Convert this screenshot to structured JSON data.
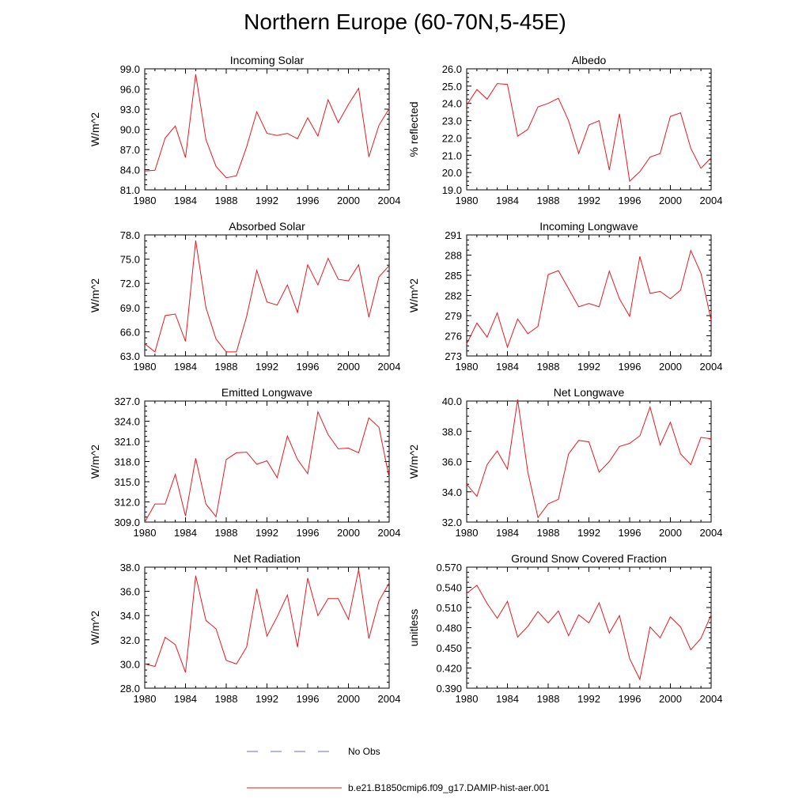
{
  "figure": {
    "title": "Northern Europe (60-70N,5-45E)",
    "legend": {
      "obs_label": "No Obs",
      "obs_color": "#6a6ad8",
      "model_label": "b.e21.B1850cmip6.f09_g17.DAMIP-hist-aer.001",
      "model_color": "#e8191e"
    }
  },
  "chart_data": [
    {
      "type": "line",
      "title": "Incoming Solar",
      "ylabel": "W/m^2",
      "x": [
        1980,
        1981,
        1982,
        1983,
        1984,
        1985,
        1986,
        1987,
        1988,
        1989,
        1990,
        1991,
        1992,
        1993,
        1994,
        1995,
        1996,
        1997,
        1998,
        1999,
        2000,
        2001,
        2002,
        2003,
        2004
      ],
      "xlim": [
        1980,
        2004
      ],
      "xticks": [
        "1980",
        "1984",
        "1988",
        "1992",
        "1996",
        "2000",
        "2004"
      ],
      "ylim": [
        81,
        99
      ],
      "yticks": [
        "81.0",
        "84.0",
        "87.0",
        "90.0",
        "93.0",
        "96.0",
        "99.0"
      ],
      "series": [
        {
          "values": [
            83.8,
            83.9,
            88.7,
            90.5,
            85.8,
            98.2,
            88.5,
            84.5,
            82.8,
            83.1,
            87.4,
            92.6,
            89.4,
            89.1,
            89.4,
            88.6,
            91.7,
            89.0,
            94.4,
            91.0,
            93.7,
            96.1,
            85.9,
            90.6,
            93.1
          ]
        }
      ]
    },
    {
      "type": "line",
      "title": "Albedo",
      "ylabel": "% reflected",
      "x": [
        1980,
        1981,
        1982,
        1983,
        1984,
        1985,
        1986,
        1987,
        1988,
        1989,
        1990,
        1991,
        1992,
        1993,
        1994,
        1995,
        1996,
        1997,
        1998,
        1999,
        2000,
        2001,
        2002,
        2003,
        2004
      ],
      "xlim": [
        1980,
        2004
      ],
      "xticks": [
        "1980",
        "1984",
        "1988",
        "1992",
        "1996",
        "2000",
        "2004"
      ],
      "ylim": [
        19,
        26
      ],
      "yticks": [
        "19.0",
        "20.0",
        "21.0",
        "22.0",
        "23.0",
        "24.0",
        "25.0",
        "26.0"
      ],
      "series": [
        {
          "values": [
            23.9,
            24.8,
            24.25,
            25.15,
            25.1,
            22.1,
            22.5,
            23.8,
            24.0,
            24.3,
            23.0,
            21.1,
            22.75,
            23.0,
            20.15,
            23.4,
            19.5,
            20.05,
            20.9,
            21.1,
            23.25,
            23.45,
            21.4,
            20.25,
            20.85
          ]
        }
      ]
    },
    {
      "type": "line",
      "title": "Absorbed Solar",
      "ylabel": "W/m^2",
      "x": [
        1980,
        1981,
        1982,
        1983,
        1984,
        1985,
        1986,
        1987,
        1988,
        1989,
        1990,
        1991,
        1992,
        1993,
        1994,
        1995,
        1996,
        1997,
        1998,
        1999,
        2000,
        2001,
        2002,
        2003,
        2004
      ],
      "xlim": [
        1980,
        2004
      ],
      "xticks": [
        "1980",
        "1984",
        "1988",
        "1992",
        "1996",
        "2000",
        "2004"
      ],
      "ylim": [
        63,
        78
      ],
      "yticks": [
        "63.0",
        "66.0",
        "69.0",
        "72.0",
        "75.0",
        "78.0"
      ],
      "series": [
        {
          "values": [
            64.5,
            63.5,
            68.0,
            68.2,
            64.8,
            77.3,
            69.0,
            65.1,
            63.5,
            63.5,
            67.9,
            73.6,
            69.7,
            69.3,
            71.8,
            68.4,
            74.3,
            71.8,
            75.1,
            72.5,
            72.3,
            74.3,
            67.8,
            72.8,
            74.2
          ]
        }
      ]
    },
    {
      "type": "line",
      "title": "Incoming Longwave",
      "ylabel": "W/m^2",
      "x": [
        1980,
        1981,
        1982,
        1983,
        1984,
        1985,
        1986,
        1987,
        1988,
        1989,
        1990,
        1991,
        1992,
        1993,
        1994,
        1995,
        1996,
        1997,
        1998,
        1999,
        2000,
        2001,
        2002,
        2003,
        2004
      ],
      "xlim": [
        1980,
        2004
      ],
      "xticks": [
        "1980",
        "1984",
        "1988",
        "1992",
        "1996",
        "2000",
        "2004"
      ],
      "ylim": [
        273,
        291
      ],
      "yticks": [
        "273",
        "276",
        "279",
        "282",
        "285",
        "288",
        "291"
      ],
      "series": [
        {
          "values": [
            274.8,
            277.9,
            275.8,
            279.4,
            274.3,
            278.5,
            276.3,
            277.4,
            285.1,
            285.7,
            283.0,
            280.3,
            280.8,
            280.3,
            285.6,
            281.5,
            278.9,
            287.8,
            282.3,
            282.6,
            281.5,
            282.8,
            288.7,
            285.3,
            278.3
          ]
        }
      ]
    },
    {
      "type": "line",
      "title": "Emitted Longwave",
      "ylabel": "W/m^2",
      "x": [
        1980,
        1981,
        1982,
        1983,
        1984,
        1985,
        1986,
        1987,
        1988,
        1989,
        1990,
        1991,
        1992,
        1993,
        1994,
        1995,
        1996,
        1997,
        1998,
        1999,
        2000,
        2001,
        2002,
        2003,
        2004
      ],
      "xlim": [
        1980,
        2004
      ],
      "xticks": [
        "1980",
        "1984",
        "1988",
        "1992",
        "1996",
        "2000",
        "2004"
      ],
      "ylim": [
        309,
        327
      ],
      "yticks": [
        "309.0",
        "312.0",
        "315.0",
        "318.0",
        "321.0",
        "324.0",
        "327.0"
      ],
      "series": [
        {
          "values": [
            309.0,
            311.7,
            311.7,
            316.1,
            309.9,
            318.5,
            311.7,
            309.8,
            318.3,
            319.3,
            319.4,
            317.6,
            318.1,
            315.6,
            321.8,
            318.3,
            316.2,
            325.4,
            322.0,
            319.9,
            320.0,
            319.3,
            324.5,
            323.1,
            315.6
          ]
        }
      ]
    },
    {
      "type": "line",
      "title": "Net Longwave",
      "ylabel": "W/m^2",
      "x": [
        1980,
        1981,
        1982,
        1983,
        1984,
        1985,
        1986,
        1987,
        1988,
        1989,
        1990,
        1991,
        1992,
        1993,
        1994,
        1995,
        1996,
        1997,
        1998,
        1999,
        2000,
        2001,
        2002,
        2003,
        2004
      ],
      "xlim": [
        1980,
        2004
      ],
      "xticks": [
        "1980",
        "1984",
        "1988",
        "1992",
        "1996",
        "2000",
        "2004"
      ],
      "ylim": [
        32,
        40
      ],
      "yticks": [
        "32.0",
        "34.0",
        "36.0",
        "38.0",
        "40.0"
      ],
      "series": [
        {
          "values": [
            34.5,
            33.7,
            35.8,
            36.7,
            35.5,
            40.1,
            35.3,
            32.3,
            33.2,
            33.5,
            36.5,
            37.4,
            37.3,
            35.3,
            36.0,
            37.0,
            37.2,
            37.7,
            39.6,
            37.1,
            38.6,
            36.5,
            35.8,
            37.6,
            37.5
          ]
        }
      ]
    },
    {
      "type": "line",
      "title": "Net Radiation",
      "ylabel": "W/m^2",
      "x": [
        1980,
        1981,
        1982,
        1983,
        1984,
        1985,
        1986,
        1987,
        1988,
        1989,
        1990,
        1991,
        1992,
        1993,
        1994,
        1995,
        1996,
        1997,
        1998,
        1999,
        2000,
        2001,
        2002,
        2003,
        2004
      ],
      "xlim": [
        1980,
        2004
      ],
      "xticks": [
        "1980",
        "1984",
        "1988",
        "1992",
        "1996",
        "2000",
        "2004"
      ],
      "ylim": [
        28,
        38
      ],
      "yticks": [
        "28.0",
        "30.0",
        "32.0",
        "34.0",
        "36.0",
        "38.0"
      ],
      "series": [
        {
          "values": [
            30.0,
            29.8,
            32.2,
            31.6,
            29.3,
            37.3,
            33.6,
            32.9,
            30.3,
            30.0,
            31.4,
            36.2,
            32.3,
            33.9,
            35.7,
            31.4,
            37.1,
            34.0,
            35.4,
            35.4,
            33.7,
            37.8,
            32.1,
            35.2,
            36.7
          ]
        }
      ]
    },
    {
      "type": "line",
      "title": "Ground Snow Covered Fraction",
      "ylabel": "unitless",
      "x": [
        1980,
        1981,
        1982,
        1983,
        1984,
        1985,
        1986,
        1987,
        1988,
        1989,
        1990,
        1991,
        1992,
        1993,
        1994,
        1995,
        1996,
        1997,
        1998,
        1999,
        2000,
        2001,
        2002,
        2003,
        2004
      ],
      "xlim": [
        1980,
        2004
      ],
      "xticks": [
        "1980",
        "1984",
        "1988",
        "1992",
        "1996",
        "2000",
        "2004"
      ],
      "ylim": [
        0.39,
        0.57
      ],
      "yticks": [
        "0.390",
        "0.420",
        "0.450",
        "0.480",
        "0.510",
        "0.540",
        "0.570"
      ],
      "series": [
        {
          "values": [
            0.531,
            0.543,
            0.516,
            0.494,
            0.519,
            0.466,
            0.482,
            0.504,
            0.487,
            0.505,
            0.468,
            0.499,
            0.487,
            0.517,
            0.472,
            0.498,
            0.434,
            0.403,
            0.481,
            0.465,
            0.496,
            0.481,
            0.447,
            0.464,
            0.499
          ]
        }
      ]
    }
  ]
}
